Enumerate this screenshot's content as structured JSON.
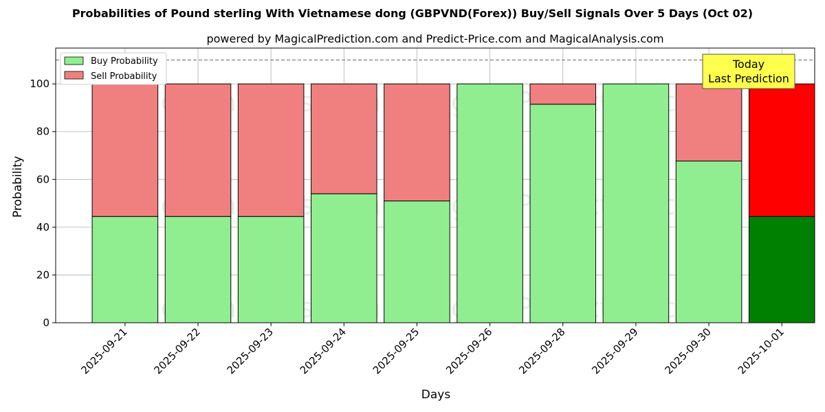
{
  "chart_data": {
    "type": "bar",
    "stacked": true,
    "title": "Probabilities of Pound sterling With Vietnamese dong (GBPVND(Forex)) Buy/Sell Signals Over 5 Days (Oct 02)",
    "subtitle": "powered by MagicalPrediction.com and Predict-Price.com and MagicalAnalysis.com",
    "xlabel": "Days",
    "ylabel": "Probability",
    "ylim": [
      0,
      115
    ],
    "yticks": [
      0,
      20,
      40,
      60,
      80,
      100
    ],
    "reference_line": 110,
    "grid": true,
    "legend_position": "top-left",
    "categories": [
      "2025-09-21",
      "2025-09-22",
      "2025-09-23",
      "2025-09-24",
      "2025-09-25",
      "2025-09-26",
      "2025-09-28",
      "2025-09-29",
      "2025-09-30",
      "2025-10-01"
    ],
    "series": [
      {
        "name": "Buy Probability",
        "color": "#90ee90",
        "highlight_color": "#008000",
        "values": [
          44.5,
          44.5,
          44.5,
          54.0,
          51.0,
          100.0,
          91.5,
          100.0,
          67.7,
          44.5
        ]
      },
      {
        "name": "Sell Probability",
        "color": "#f08080",
        "highlight_color": "#ff0000",
        "values": [
          55.5,
          55.5,
          55.5,
          46.0,
          49.0,
          0.0,
          8.5,
          0.0,
          32.3,
          55.5
        ]
      }
    ],
    "highlight_index": 9,
    "annotation": {
      "line1": "Today",
      "line2": "Last Prediction",
      "background": "#ffff4d"
    },
    "watermarks": [
      "MagicalAnalysis.com",
      "MagicalPrediction.com"
    ]
  }
}
